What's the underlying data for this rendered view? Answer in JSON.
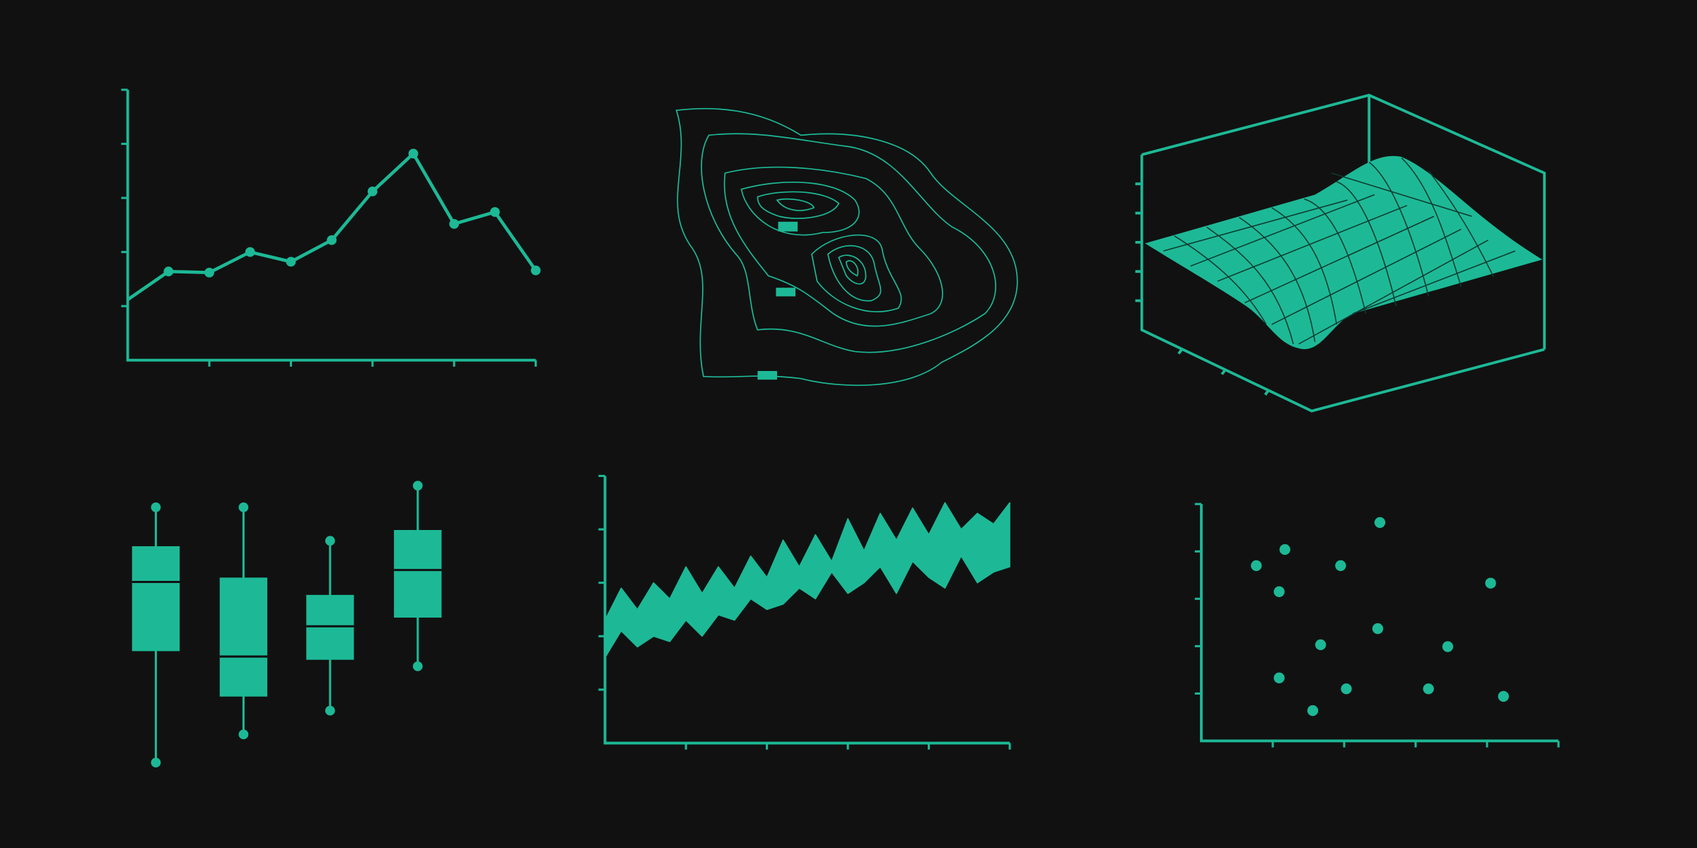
{
  "chart_data": [
    {
      "type": "line",
      "color": "#1db996",
      "x": [
        0,
        1,
        2,
        3,
        4,
        5,
        6,
        7,
        8,
        9,
        10
      ],
      "values": [
        1.12,
        1.64,
        1.62,
        2.0,
        1.82,
        2.22,
        3.12,
        3.82,
        2.52,
        2.74,
        1.66
      ],
      "xlim": [
        0,
        10
      ],
      "ylim": [
        0,
        5
      ],
      "xticks": [
        2,
        4,
        6,
        8,
        10
      ],
      "yticks": [
        1,
        2,
        3,
        4,
        5
      ]
    },
    {
      "type": "box",
      "color": "#1db996",
      "ylim": [
        0,
        30
      ],
      "boxes": [
        {
          "min": 1.5,
          "q1": 11.8,
          "median": 18.2,
          "q3": 21.5,
          "max": 25.1
        },
        {
          "min": 4.1,
          "q1": 7.6,
          "median": 11.3,
          "q3": 18.6,
          "max": 25.1
        },
        {
          "min": 6.3,
          "q1": 11.0,
          "median": 14.1,
          "q3": 17.0,
          "max": 22.0
        },
        {
          "min": 10.4,
          "q1": 14.9,
          "median": 19.3,
          "q3": 23.0,
          "max": 27.1
        }
      ]
    },
    {
      "type": "band",
      "color": "#1db996",
      "x": [
        0,
        0.2,
        0.4,
        0.6,
        0.8,
        1,
        1.2,
        1.4,
        1.6,
        1.8,
        2,
        2.2,
        2.4,
        2.6,
        2.8,
        3,
        3.2,
        3.4,
        3.6,
        3.8,
        4,
        4.2,
        4.4,
        4.6,
        4.8,
        5
      ],
      "upper": [
        2.3,
        2.9,
        2.5,
        3.0,
        2.7,
        3.3,
        2.8,
        3.3,
        2.9,
        3.5,
        3.1,
        3.8,
        3.3,
        3.9,
        3.4,
        4.2,
        3.6,
        4.3,
        3.8,
        4.4,
        3.9,
        4.5,
        4.0,
        4.3,
        4.1,
        4.5
      ],
      "lower": [
        1.6,
        2.1,
        1.8,
        2.0,
        1.9,
        2.3,
        2.0,
        2.4,
        2.3,
        2.7,
        2.5,
        2.6,
        2.9,
        2.7,
        3.2,
        2.8,
        3.0,
        3.3,
        2.8,
        3.4,
        3.1,
        2.9,
        3.5,
        3.0,
        3.2,
        3.3
      ],
      "xlim": [
        0,
        5
      ],
      "ylim": [
        0,
        5
      ],
      "xticks": [
        1,
        2,
        3,
        4,
        5
      ],
      "yticks": [
        1,
        2,
        3,
        4,
        5
      ]
    },
    {
      "type": "scatter",
      "color": "#1db996",
      "x": [
        0.77,
        1.17,
        1.09,
        1.95,
        2.5,
        4.05,
        1.67,
        2.47,
        3.45,
        1.09,
        2.03,
        1.56,
        3.18,
        4.23
      ],
      "values": [
        3.7,
        4.04,
        3.15,
        3.7,
        4.61,
        3.33,
        2.03,
        2.37,
        1.99,
        1.33,
        1.1,
        0.64,
        1.1,
        0.94
      ],
      "xlim": [
        0,
        5
      ],
      "ylim": [
        0,
        5
      ],
      "xticks": [
        1,
        2,
        3,
        4,
        5
      ],
      "yticks": [
        1,
        2,
        3,
        4,
        5
      ]
    }
  ]
}
